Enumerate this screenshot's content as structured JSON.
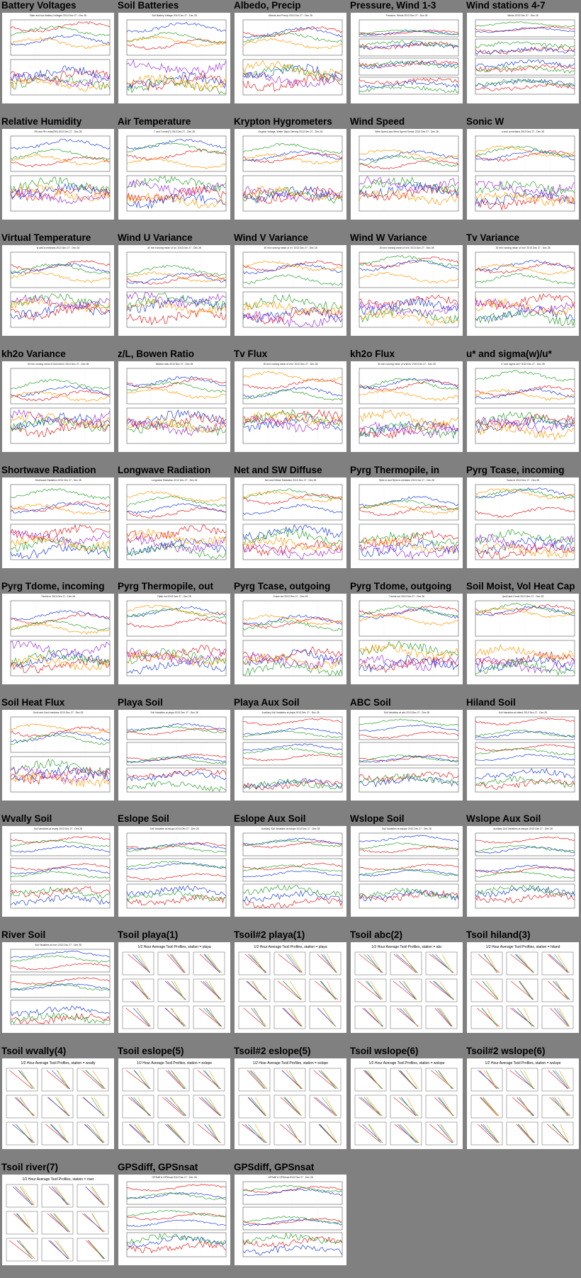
{
  "page": {
    "background": "#808080"
  },
  "colors": {
    "series": [
      "#e41a1c",
      "#1f3fd8",
      "#2ca02c",
      "#ff9900",
      "#9b30d9",
      "#000000",
      "#a6d854",
      "#ff66cc",
      "#00bcd4"
    ]
  },
  "plots": [
    {
      "caption": "Battery Voltages",
      "type": "ts2",
      "title": "Main and Aux Battery Voltages 2013 Dec 27 - Dec 28"
    },
    {
      "caption": "Soil Batteries",
      "type": "ts2",
      "title": "Soil Battery Voltage 2013 Dec 27 - Dec 28"
    },
    {
      "caption": "Albedo, Precip",
      "type": "ts2",
      "title": "Albedo and Precip 2013 Dec 27 - Dec 28"
    },
    {
      "caption": "Pressure, Wind 1-3",
      "type": "ts4",
      "title": "Pressure, Winds 2013 Dec 27 - Dec 28"
    },
    {
      "caption": "Wind stations 4-7",
      "type": "ts4",
      "title": "Winds 2013 Dec 27 - Dec 28"
    },
    {
      "caption": "Relative Humidity",
      "type": "ts2",
      "title": "RH and RH.mote(RH) 2013 Dec 27 - Dec 28"
    },
    {
      "caption": "Air Temperature",
      "type": "ts2",
      "title": "T and T.mote(T) 2013 Dec 27 - Dec 28"
    },
    {
      "caption": "Krypton Hygrometers",
      "type": "ts2",
      "title": "Krypton Voltage, Water Vapor Density 2013 Dec 27 - Dec 28"
    },
    {
      "caption": "Wind Speed",
      "type": "ts2",
      "title": "Wind Speed and Wind Speed Sonics 2013 Dec 27 - Dec 28"
    },
    {
      "caption": "Sonic W",
      "type": "ts2",
      "title": "w and w.medians 2013 Dec 27 - Dec 28"
    },
    {
      "caption": "Virtual Temperature",
      "type": "ts2",
      "title": "tc and tc.medians 2013 Dec 27 - Dec 28"
    },
    {
      "caption": "Wind U Variance",
      "type": "ts2",
      "title": "30 min running mean of u'u' 2013 Dec 27 - Dec 28"
    },
    {
      "caption": "Wind V Variance",
      "type": "ts2",
      "title": "30 min running mean of v'v' 2013 Dec 27 - Dec 28"
    },
    {
      "caption": "Wind W Variance",
      "type": "ts2",
      "title": "30 min running mean of w'w' 2013 Dec 27 - Dec 28"
    },
    {
      "caption": "Tv Variance",
      "type": "ts2",
      "title": "30 min running mean of tc'tc' 2013 Dec 27 - Dec 28"
    },
    {
      "caption": "kh2o Variance",
      "type": "ts2",
      "title": "30 min running mean of kh2o'kh2o' 2013 Dec 27 - Dec 28"
    },
    {
      "caption": "z/L, Bowen Ratio",
      "type": "ts2",
      "title": "Median ratio 2013 Dec 27 - Dec 28"
    },
    {
      "caption": "Tv Flux",
      "type": "ts2",
      "title": "30 min running mean of w'tc' 2013 Dec 27 - Dec 28"
    },
    {
      "caption": "kh2o Flux",
      "type": "ts2",
      "title": "30 min running mean of w'kh2o' 2013 Dec 27 - Dec 28"
    },
    {
      "caption": "u* and sigma(w)/u*",
      "type": "ts2",
      "title": "u* and sigma w/u* 2013 Dec 27 - Dec 28"
    },
    {
      "caption": "Shortwave Radiation",
      "type": "ts2",
      "title": "Shortwave Radiation 2013 Dec 27 - Dec 28"
    },
    {
      "caption": "Longwave Radiation",
      "type": "ts2",
      "title": "Longwave Radiation 2013 Dec 27 - Dec 28"
    },
    {
      "caption": "Net and SW Diffuse",
      "type": "ts2",
      "title": "Net and Diffuse Radiation 2013 Dec 27 - Dec 28"
    },
    {
      "caption": "Pyrg Thermopile, in",
      "type": "ts2",
      "title": "Rpile.in and Rpile.in.medians 2013 Dec 27 - Dec 28"
    },
    {
      "caption": "Pyrg Tcase, incoming",
      "type": "ts2",
      "title": "Tcase.in 2013 Dec 27 - Dec 28"
    },
    {
      "caption": "Pyrg Tdome, incoming",
      "type": "ts2",
      "title": "Tdome.in 2013 Dec 27 - Dec 28"
    },
    {
      "caption": "Pyrg Thermopile, out",
      "type": "ts2",
      "title": "Rpile.out 2013 Dec 27 - Dec 28"
    },
    {
      "caption": "Pyrg Tcase, outgoing",
      "type": "ts2",
      "title": "Tcase.out 2013 Dec 27 - Dec 28"
    },
    {
      "caption": "Pyrg Tdome, outgoing",
      "type": "ts2",
      "title": "Tdome.out 2013 Dec 27 - Dec 28"
    },
    {
      "caption": "Soil Moist, Vol Heat Cap",
      "type": "ts2",
      "title": "Qsoil and Cvsoil 2013 Dec 27 - Dec 28"
    },
    {
      "caption": "Soil Heat Flux",
      "type": "ts2",
      "title": "Gsoil and Gsoil medians 2013 Dec 27 - Dec 28"
    },
    {
      "caption": "Playa Soil",
      "type": "ts3",
      "title": "Soil Variables at playa 2013 Dec 27 - Dec 28"
    },
    {
      "caption": "Playa Aux Soil",
      "type": "ts3",
      "title": "Auxiliary Soil Variables at playa 2013 Dec 27 - Dec 28"
    },
    {
      "caption": "ABC Soil",
      "type": "ts3",
      "title": "Soil Variables at abc 2013 Dec 27 - Dec 28"
    },
    {
      "caption": "Hiland Soil",
      "type": "ts3",
      "title": "Soil Variables at hiland 2013 Dec 27 - Dec 28"
    },
    {
      "caption": "Wvally Soil",
      "type": "ts3",
      "title": "Soil Variables at wvally 2013 Dec 27 - Dec 28"
    },
    {
      "caption": "Eslope Soil",
      "type": "ts3",
      "title": "Soil Variables at eslope 2013 Dec 27 - Dec 28"
    },
    {
      "caption": "Eslope Aux Soil",
      "type": "ts3",
      "title": "Auxiliary Soil Variables at eslope 2013 Dec 27 - Dec 28"
    },
    {
      "caption": "Wslope Soil",
      "type": "ts3",
      "title": "Soil Variables at wslope 2013 Dec 27 - Dec 28"
    },
    {
      "caption": "Wslope Aux Soil",
      "type": "ts3",
      "title": "Auxiliary Soil Variables at wslope 2013 Dec 27 - Dec 28"
    },
    {
      "caption": "River Soil",
      "type": "ts3",
      "title": "Soil Variables at river 2013 Dec 27 - Dec 28"
    },
    {
      "caption": "Tsoil playa(1)",
      "type": "tsoil",
      "title": "1/2 Hour Average Tsoil Profiles, station = playa"
    },
    {
      "caption": "Tsoil#2 playa(1)",
      "type": "tsoil",
      "title": "1/2 Hour Average Tsoil Profiles, station = playa"
    },
    {
      "caption": "Tsoil abc(2)",
      "type": "tsoil",
      "title": "1/2 Hour Average Tsoil Profiles, station = abc"
    },
    {
      "caption": "Tsoil hiland(3)",
      "type": "tsoil",
      "title": "1/2 Hour Average Tsoil Profiles, station = hiland"
    },
    {
      "caption": "Tsoil wvally(4)",
      "type": "tsoil",
      "title": "1/2 Hour Average Tsoil Profiles, station = wvally"
    },
    {
      "caption": "Tsoil eslope(5)",
      "type": "tsoil",
      "title": "1/2 Hour Average Tsoil Profiles, station = eslope"
    },
    {
      "caption": "Tsoil#2 eslope(5)",
      "type": "tsoil",
      "title": "1/2 Hour Average Tsoil Profiles, station = eslope"
    },
    {
      "caption": "Tsoil wslope(6)",
      "type": "tsoil",
      "title": "1/2 Hour Average Tsoil Profiles, station = wslope"
    },
    {
      "caption": "Tsoil#2 wslope(6)",
      "type": "tsoil",
      "title": "1/2 Hour Average Tsoil Profiles, station = wslope"
    },
    {
      "caption": "Tsoil river(7)",
      "type": "tsoil",
      "title": "1/2 Hour Average Tsoil Profiles, station = river"
    },
    {
      "caption": "GPSdiff, GPSnsat",
      "type": "ts3",
      "title": "GPSdiff & GPSnsat 2013 Dec 27 - Dec 28"
    },
    {
      "caption": "GPSdiff, GPSnsat",
      "type": "ts3",
      "title": "GPSdiff & GPSnsat 2013 Dec 27 - Dec 28"
    }
  ]
}
